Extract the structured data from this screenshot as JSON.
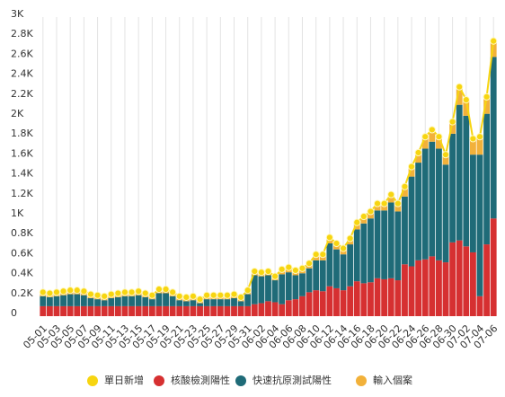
{
  "chart_data": {
    "type": "stacked-bar-line",
    "categories": [
      "05-01",
      null,
      "05-03",
      null,
      "05-05",
      null,
      "05-07",
      null,
      "05-09",
      null,
      "05-11",
      null,
      "05-13",
      null,
      "05-15",
      null,
      "05-17",
      null,
      "05-19",
      null,
      "05-21",
      null,
      "05-23",
      null,
      "05-25",
      null,
      "05-27",
      null,
      "05-29",
      null,
      "05-31",
      null,
      "06-02",
      null,
      "06-04",
      null,
      "06-06",
      null,
      "06-08",
      null,
      "06-10",
      null,
      "06-12",
      null,
      "06-14",
      null,
      "06-16",
      null,
      "06-18",
      null,
      "06-20",
      null,
      "06-22",
      null,
      "06-24",
      null,
      "06-26",
      null,
      "06-28",
      null,
      "06-30",
      null,
      "07-02",
      null,
      "07-04",
      null,
      "07-06"
    ],
    "line": {
      "name": "單日新增",
      "color": "#f7d511",
      "values": [
        240,
        230,
        240,
        250,
        260,
        260,
        250,
        220,
        210,
        200,
        220,
        230,
        240,
        240,
        250,
        230,
        210,
        270,
        270,
        240,
        200,
        190,
        200,
        170,
        210,
        210,
        210,
        210,
        220,
        190,
        260,
        450,
        440,
        450,
        400,
        470,
        490,
        460,
        480,
        530,
        620,
        620,
        790,
        730,
        680,
        780,
        940,
        1000,
        1050,
        1130,
        1130,
        1220,
        1130,
        1300,
        1500,
        1640,
        1800,
        1870,
        1800,
        1620,
        1950,
        2300,
        2170,
        1780,
        1800,
        2200,
        2760
      ]
    },
    "series": [
      {
        "name": "核酸檢測陽性",
        "color": "#d63031",
        "values": [
          100,
          100,
          100,
          100,
          100,
          100,
          100,
          100,
          100,
          100,
          100,
          100,
          100,
          100,
          100,
          100,
          100,
          100,
          100,
          100,
          100,
          100,
          100,
          100,
          100,
          100,
          100,
          100,
          100,
          100,
          100,
          120,
          130,
          150,
          140,
          120,
          160,
          170,
          200,
          240,
          260,
          250,
          300,
          280,
          260,
          300,
          350,
          330,
          340,
          380,
          370,
          380,
          360,
          520,
          500,
          560,
          570,
          600,
          560,
          540,
          740,
          760,
          700,
          640,
          200,
          720,
          980
        ]
      },
      {
        "name": "快速抗原測試陽性",
        "color": "#1f6b78",
        "values": [
          100,
          90,
          100,
          110,
          120,
          120,
          110,
          80,
          70,
          60,
          80,
          90,
          100,
          100,
          110,
          90,
          70,
          130,
          130,
          100,
          60,
          50,
          60,
          30,
          70,
          70,
          70,
          70,
          80,
          50,
          120,
          290,
          270,
          260,
          220,
          300,
          280,
          240,
          230,
          240,
          300,
          310,
          430,
          390,
          360,
          420,
          520,
          600,
          640,
          680,
          690,
          760,
          690,
          680,
          900,
          980,
          1110,
          1150,
          1120,
          980,
          1090,
          1360,
          1310,
          980,
          1420,
          1310,
          1620
        ]
      },
      {
        "name": "輸入個案",
        "color": "#f2b13a",
        "values": [
          40,
          40,
          40,
          40,
          40,
          40,
          40,
          40,
          40,
          40,
          40,
          40,
          40,
          40,
          40,
          40,
          40,
          40,
          40,
          40,
          40,
          40,
          40,
          40,
          40,
          40,
          40,
          40,
          40,
          40,
          40,
          40,
          40,
          40,
          40,
          50,
          50,
          50,
          50,
          50,
          60,
          60,
          60,
          60,
          60,
          60,
          70,
          70,
          70,
          70,
          70,
          80,
          80,
          100,
          100,
          100,
          120,
          120,
          120,
          100,
          120,
          180,
          160,
          160,
          180,
          170,
          160
        ]
      }
    ],
    "ylim": [
      0,
      3000
    ],
    "yticks": [
      0,
      {
        "value": 200,
        "label": "0.2K"
      },
      {
        "value": 400,
        "label": "0.4K"
      },
      {
        "value": 600,
        "label": "0.6K"
      },
      {
        "value": 800,
        "label": "0.8K"
      },
      {
        "value": 1000,
        "label": "1K"
      },
      {
        "value": 1200,
        "label": "1.2K"
      },
      {
        "value": 1400,
        "label": "1.4K"
      },
      {
        "value": 1600,
        "label": "1.6K"
      },
      {
        "value": 1800,
        "label": "1.8K"
      },
      {
        "value": 2000,
        "label": "2K"
      },
      {
        "value": 2200,
        "label": "2.2K"
      },
      {
        "value": 2400,
        "label": "2.4K"
      },
      {
        "value": 2600,
        "label": "2.6K"
      },
      {
        "value": 2800,
        "label": "2.8K"
      },
      {
        "value": 3000,
        "label": "3K"
      }
    ],
    "xgrid": true
  }
}
